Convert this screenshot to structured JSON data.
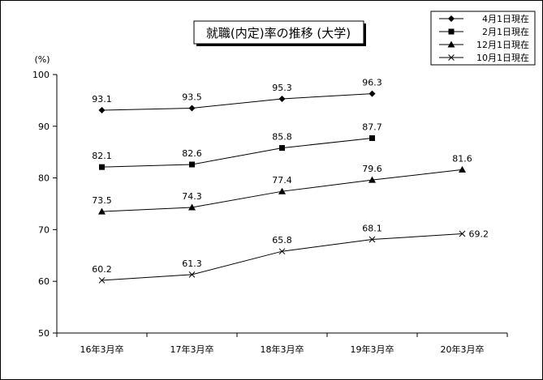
{
  "chart_data": {
    "type": "line",
    "title": "就職(内定)率の推移 (大学)",
    "ylabel": "(%)",
    "ylim": [
      50,
      100
    ],
    "yticks": [
      50,
      60,
      70,
      80,
      90,
      100
    ],
    "categories": [
      "16年3月卒",
      "17年3月卒",
      "18年3月卒",
      "19年3月卒",
      "20年3月卒"
    ],
    "grid": false,
    "legend_position": "top-right",
    "series": [
      {
        "name": "4月1日現在",
        "marker": "diamond",
        "values": [
          93.1,
          93.5,
          95.3,
          96.3,
          null
        ]
      },
      {
        "name": "2月1日現在",
        "marker": "square",
        "values": [
          82.1,
          82.6,
          85.8,
          87.7,
          null
        ]
      },
      {
        "name": "12月1日現在",
        "marker": "triangle",
        "values": [
          73.5,
          74.3,
          77.4,
          79.6,
          81.6
        ]
      },
      {
        "name": "10月1日現在",
        "marker": "x",
        "values": [
          60.2,
          61.3,
          65.8,
          68.1,
          69.2
        ]
      }
    ]
  }
}
